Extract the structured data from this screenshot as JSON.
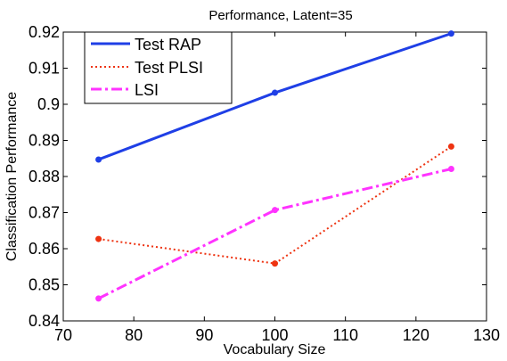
{
  "chart_data": {
    "type": "line",
    "title": "Performance, Latent=35",
    "xlabel": "Vocabulary Size",
    "ylabel": "Classification Performance",
    "xlim": [
      70,
      130
    ],
    "ylim": [
      0.84,
      0.92
    ],
    "xticks": [
      70,
      80,
      90,
      100,
      110,
      120,
      130
    ],
    "yticks": [
      0.84,
      0.85,
      0.86,
      0.87,
      0.88,
      0.89,
      0.9,
      0.91,
      0.92
    ],
    "xtick_labels": [
      "70",
      "80",
      "90",
      "100",
      "110",
      "120",
      "130"
    ],
    "ytick_labels": [
      "0.84",
      "0.85",
      "0.86",
      "0.87",
      "0.88",
      "0.89",
      "0.9",
      "0.91",
      "0.92"
    ],
    "grid": false,
    "legend_position": "top-left",
    "x": [
      75,
      100,
      125
    ],
    "series": [
      {
        "name": "Test RAP",
        "values": [
          0.8847,
          0.9032,
          0.9196
        ],
        "color": "#1f3fe6",
        "style": "solid"
      },
      {
        "name": "Test PLSI",
        "values": [
          0.8627,
          0.8559,
          0.8883
        ],
        "color": "#ee3311",
        "style": "dotted"
      },
      {
        "name": "LSI",
        "values": [
          0.8462,
          0.8707,
          0.8821
        ],
        "color": "#ff33ff",
        "style": "dashdot"
      }
    ]
  }
}
